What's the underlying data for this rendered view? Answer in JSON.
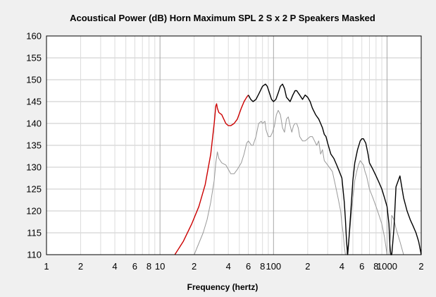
{
  "chart_data": {
    "type": "line",
    "title": "Acoustical Power (dB)   Horn   Maximum SPL   2 S x 2 P Speakers   Masked",
    "xlabel": "Frequency (hertz)",
    "ylabel": "",
    "xscale": "log",
    "xlim": [
      1,
      2000
    ],
    "ylim": [
      110,
      160
    ],
    "grid": true,
    "yticks": [
      110,
      115,
      120,
      125,
      130,
      135,
      140,
      145,
      150,
      155,
      160
    ],
    "xticks": [
      {
        "value": 1,
        "label": "1"
      },
      {
        "value": 2,
        "label": "2"
      },
      {
        "value": 4,
        "label": "4"
      },
      {
        "value": 6,
        "label": "6"
      },
      {
        "value": 8,
        "label": "8"
      },
      {
        "value": 10,
        "label": "10"
      },
      {
        "value": 20,
        "label": "2"
      },
      {
        "value": 40,
        "label": "4"
      },
      {
        "value": 60,
        "label": "6"
      },
      {
        "value": 80,
        "label": "8"
      },
      {
        "value": 100,
        "label": "100"
      },
      {
        "value": 200,
        "label": "2"
      },
      {
        "value": 400,
        "label": "4"
      },
      {
        "value": 600,
        "label": "6"
      },
      {
        "value": 800,
        "label": "8"
      },
      {
        "value": 1000,
        "label": "1000"
      },
      {
        "value": 2000,
        "label": "2"
      }
    ],
    "series": [
      {
        "color": "#cc0000",
        "x": [
          13.5,
          16,
          19,
          22,
          25,
          28,
          30,
          31,
          31.5,
          32,
          33,
          35,
          38,
          40,
          42,
          45,
          48,
          52,
          55,
          58,
          60
        ],
        "y": [
          110,
          113,
          117,
          121,
          126,
          133,
          140,
          144,
          144.5,
          143.5,
          142.5,
          142,
          140,
          139.5,
          139.5,
          140,
          141,
          143.5,
          145,
          146,
          146.5
        ]
      },
      {
        "color": "#000000",
        "x": [
          60,
          63,
          66,
          70,
          75,
          80,
          85,
          88,
          92,
          96,
          100,
          105,
          110,
          115,
          120,
          125,
          130,
          140,
          148,
          155,
          160,
          170,
          180,
          190,
          200,
          210,
          220,
          235,
          250,
          260,
          270,
          280,
          290,
          300,
          320,
          340,
          360,
          380,
          400,
          420,
          430,
          440,
          450,
          460,
          480,
          500,
          520,
          550,
          580,
          600,
          620,
          650,
          680,
          700,
          750,
          800,
          850,
          900,
          950,
          1000,
          1040,
          1060,
          1080,
          1100,
          1150,
          1200,
          1300,
          1400,
          1500,
          1600,
          1700,
          1800,
          1900,
          2000
        ],
        "y": [
          146.5,
          145.5,
          145,
          145.5,
          147,
          148.5,
          149,
          148.5,
          147,
          145.5,
          145,
          145.5,
          147,
          148.5,
          149,
          148,
          146,
          145,
          146.5,
          147.5,
          147.5,
          146.5,
          145.5,
          146.5,
          146,
          145,
          143.5,
          142,
          141,
          140,
          139,
          137.5,
          137,
          135.5,
          133,
          132,
          130.5,
          129,
          127.5,
          122,
          118,
          113,
          110,
          113,
          120,
          127,
          131,
          134,
          136,
          136.5,
          136.5,
          135.5,
          133,
          131,
          129.5,
          128,
          126.5,
          125,
          123,
          121,
          117,
          112,
          110,
          110,
          116,
          125.5,
          128,
          123,
          120,
          118,
          116.5,
          115,
          113,
          110
        ]
      },
      {
        "color": "#999999",
        "x": [
          20,
          24,
          26,
          28,
          30,
          31,
          32,
          33,
          35,
          38,
          40,
          42,
          45,
          48,
          52,
          55,
          58,
          60,
          62,
          64,
          66,
          70,
          74,
          78,
          80,
          84,
          86,
          90,
          94,
          98,
          102,
          106,
          110,
          115,
          120,
          125,
          130,
          135,
          140,
          145,
          150,
          155,
          160,
          165,
          170,
          180,
          190,
          200,
          210,
          220,
          230,
          240,
          250,
          260,
          270,
          280,
          300,
          330,
          350,
          370,
          390,
          400,
          410,
          420,
          430,
          440,
          460,
          480,
          500,
          520,
          540,
          560,
          580,
          600,
          620,
          640,
          660,
          700,
          750,
          800,
          850,
          900,
          950,
          1000,
          1040,
          1070,
          1100,
          1150,
          1200,
          1300,
          1400,
          1500,
          1600,
          1800,
          2000
        ],
        "y": [
          110,
          115,
          118,
          122,
          127,
          131,
          133.5,
          132,
          131,
          130.5,
          129.5,
          128.5,
          128.5,
          129.5,
          131,
          133,
          135.5,
          136,
          135.5,
          135,
          135,
          137,
          140,
          140.5,
          140,
          140.5,
          138.5,
          137,
          137,
          138,
          139.5,
          142,
          143,
          142,
          139,
          138,
          141,
          141.5,
          139.5,
          138,
          139.5,
          140,
          140,
          139,
          137,
          136,
          136,
          136.5,
          137,
          137,
          136,
          135,
          136,
          133,
          134,
          131.5,
          130.5,
          129,
          126,
          123,
          120,
          117,
          115,
          112,
          110,
          110,
          113,
          118,
          123,
          127,
          129,
          130.5,
          131.5,
          131,
          130.5,
          129,
          128,
          125,
          123,
          121,
          119,
          117,
          114,
          110,
          110,
          114,
          119,
          118,
          116,
          113,
          110,
          110,
          110,
          110,
          110
        ]
      }
    ]
  }
}
